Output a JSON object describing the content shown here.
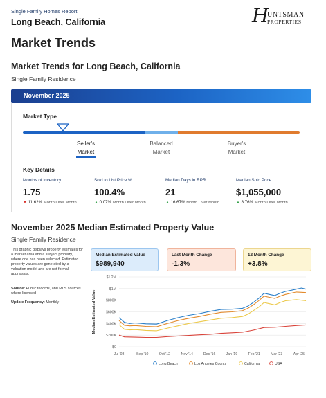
{
  "header": {
    "report_type": "Single Family Homes Report",
    "city": "Long Beach, California",
    "logo_letter": "H",
    "logo_line1": "UNTSMAN",
    "logo_line2": "PROPERTIES"
  },
  "section_title": "Market Trends",
  "market_trends": {
    "title": "Market Trends for Long Beach, California",
    "subtitle": "Single Family Residence",
    "banner": "November 2025",
    "market_type_label": "Market Type",
    "options": [
      "Seller's Market",
      "Balanced Market",
      "Buyer's Market"
    ],
    "selected_option": "Seller's Market",
    "bar_colors": {
      "sellers": "#1c63c4",
      "balanced": "#6fb0ea",
      "buyers": "#e07b2e"
    },
    "key_details_label": "Key Details",
    "key_details": [
      {
        "title": "Months of Inventory",
        "value": "1.75",
        "direction": "down",
        "change": "11.62%",
        "change_label": "Month Over Month"
      },
      {
        "title": "Sold to List Price %",
        "value": "100.4%",
        "direction": "up",
        "change": "0.07%",
        "change_label": "Month Over Month"
      },
      {
        "title": "Median Days in RPR",
        "value": "21",
        "direction": "up",
        "change": "16.67%",
        "change_label": "Month Over Month"
      },
      {
        "title": "Median Sold Price",
        "value": "$1,055,000",
        "direction": "up",
        "change": "8.76%",
        "change_label": "Month Over Month"
      }
    ]
  },
  "median_value": {
    "title": "November 2025 Median Estimated Property Value",
    "subtitle": "Single Family Residence",
    "description": "This graphic displays property estimates for a market area and a subject property, where one has been selected. Estimated property values are generated by a valuation model and are not formal appraisals.",
    "source_label": "Source:",
    "source_text": "Public records, and MLS sources where licensed",
    "frequency_label": "Update Frequency:",
    "frequency_text": "Monthly",
    "boxes": [
      {
        "title": "Median Estimated Value",
        "value": "$989,940",
        "bg": "#dcecfb",
        "border": "#9cc6ef"
      },
      {
        "title": "Last Month Change",
        "value": "-1.3%",
        "bg": "#fde6dc",
        "border": "#f0b49c"
      },
      {
        "title": "12 Month Change",
        "value": "+3.8%",
        "bg": "#fdf5d4",
        "border": "#ecd68f"
      }
    ]
  },
  "chart_data": {
    "type": "line",
    "ylabel": "Median Estimated Value",
    "ylim": [
      0,
      1200000
    ],
    "yticks": [
      "$0",
      "$200K",
      "$400K",
      "$600K",
      "$800K",
      "$1M",
      "$1.2M"
    ],
    "ytick_values": [
      0,
      200000,
      400000,
      600000,
      800000,
      1000000,
      1200000
    ],
    "xticks": [
      "Jul '08",
      "Sep '10",
      "Oct '12",
      "Nov '14",
      "Dec '16",
      "Jan '19",
      "Feb '21",
      "Mar '23",
      "Apr '25"
    ],
    "xtick_values": [
      2008.5,
      2010.67,
      2012.75,
      2014.83,
      2016.92,
      2019.0,
      2021.08,
      2023.17,
      2025.25
    ],
    "xlim": [
      2008.5,
      2025.9
    ],
    "grid": true,
    "legend_position": "bottom",
    "series": [
      {
        "name": "Long Beach",
        "color": "#2a7fc9",
        "x": [
          2008.5,
          2009.0,
          2009.5,
          2010.0,
          2011.0,
          2012.0,
          2013.0,
          2014.0,
          2015.0,
          2016.0,
          2017.0,
          2018.0,
          2019.0,
          2020.0,
          2020.5,
          2021.0,
          2021.5,
          2022.0,
          2022.5,
          2023.0,
          2023.5,
          2024.0,
          2024.5,
          2025.0,
          2025.5,
          2025.9
        ],
        "y": [
          500000,
          420000,
          400000,
          410000,
          395000,
          390000,
          450000,
          500000,
          540000,
          570000,
          610000,
          640000,
          645000,
          660000,
          700000,
          760000,
          830000,
          920000,
          900000,
          880000,
          920000,
          950000,
          970000,
          990000,
          1010000,
          990000
        ]
      },
      {
        "name": "Los Angeles County",
        "color": "#e38b2e",
        "x": [
          2008.5,
          2009.0,
          2009.5,
          2010.0,
          2011.0,
          2012.0,
          2013.0,
          2014.0,
          2015.0,
          2016.0,
          2017.0,
          2018.0,
          2019.0,
          2020.0,
          2020.5,
          2021.0,
          2021.5,
          2022.0,
          2022.5,
          2023.0,
          2023.5,
          2024.0,
          2024.5,
          2025.0,
          2025.5,
          2025.9
        ],
        "y": [
          450000,
          370000,
          360000,
          365000,
          350000,
          345000,
          400000,
          450000,
          490000,
          520000,
          560000,
          590000,
          600000,
          620000,
          660000,
          720000,
          790000,
          870000,
          850000,
          830000,
          870000,
          900000,
          920000,
          940000,
          935000,
          930000
        ]
      },
      {
        "name": "California",
        "color": "#ecc94b",
        "x": [
          2008.5,
          2009.0,
          2009.5,
          2010.0,
          2011.0,
          2012.0,
          2013.0,
          2014.0,
          2015.0,
          2016.0,
          2017.0,
          2018.0,
          2019.0,
          2020.0,
          2020.5,
          2021.0,
          2021.5,
          2022.0,
          2022.5,
          2023.0,
          2023.5,
          2024.0,
          2024.5,
          2025.0,
          2025.5,
          2025.9
        ],
        "y": [
          380000,
          300000,
          290000,
          295000,
          280000,
          275000,
          320000,
          360000,
          400000,
          430000,
          460000,
          490000,
          500000,
          520000,
          560000,
          620000,
          680000,
          760000,
          740000,
          720000,
          760000,
          790000,
          800000,
          810000,
          800000,
          790000
        ]
      },
      {
        "name": "USA",
        "color": "#d9443b",
        "x": [
          2008.5,
          2009.0,
          2010.0,
          2011.0,
          2012.0,
          2013.0,
          2014.0,
          2015.0,
          2016.0,
          2017.0,
          2018.0,
          2019.0,
          2020.0,
          2021.0,
          2022.0,
          2023.0,
          2024.0,
          2025.0,
          2025.9
        ],
        "y": [
          200000,
          170000,
          165000,
          160000,
          160000,
          175000,
          185000,
          195000,
          205000,
          215000,
          230000,
          240000,
          250000,
          285000,
          330000,
          335000,
          350000,
          365000,
          375000
        ]
      }
    ]
  }
}
